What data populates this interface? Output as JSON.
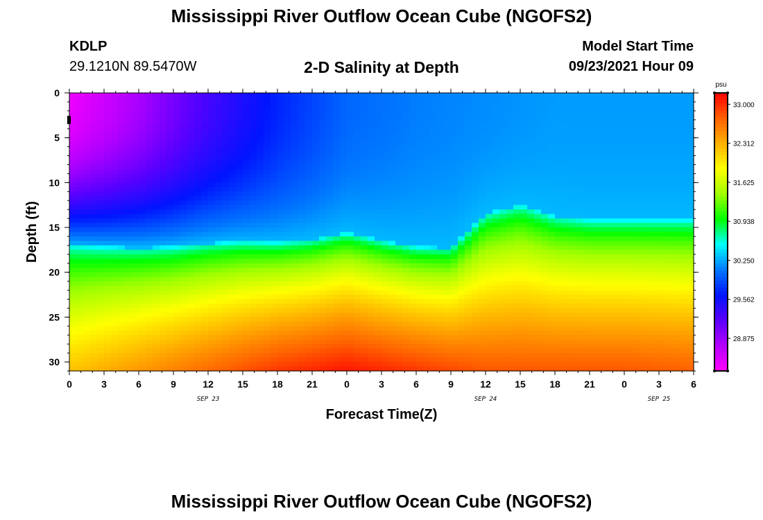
{
  "header": {
    "title": "Mississippi River Outflow Ocean Cube (NGOFS2)",
    "station_id": "KDLP",
    "coords": "29.1210N  89.5470W",
    "subtitle": "2-D Salinity at Depth",
    "model_start_label": "Model Start Time",
    "model_start_value": "09/23/2021 Hour 09"
  },
  "footer": {
    "title": "Mississippi River Outflow Ocean Cube (NGOFS2)"
  },
  "chart_data": {
    "type": "heatmap",
    "title": "2-D Salinity at Depth",
    "xlabel": "Forecast Time(Z)",
    "ylabel": "Depth (ft)",
    "x_tick_labels": [
      "0",
      "3",
      "6",
      "9",
      "12",
      "15",
      "18",
      "21",
      "0",
      "3",
      "6",
      "9",
      "12",
      "15",
      "18",
      "21",
      "0",
      "3",
      "6"
    ],
    "x_hours_range": [
      0,
      54
    ],
    "date_labels": [
      {
        "label": "SEP 23",
        "hour": 12
      },
      {
        "label": "SEP 24",
        "hour": 36
      },
      {
        "label": "SEP 25",
        "hour": 51
      }
    ],
    "y_ticks": [
      0,
      5,
      10,
      15,
      20,
      25,
      30
    ],
    "ylim": [
      0,
      31
    ],
    "y_inverted": true,
    "colorbar": {
      "unit": "psu",
      "ticks": [
        "33.000",
        "32.312",
        "31.625",
        "30.938",
        "30.250",
        "29.562",
        "28.875"
      ],
      "range": [
        28.3,
        33.2
      ],
      "colors": [
        "#ff00ff",
        "#b400ff",
        "#5a00ff",
        "#0014ff",
        "#0078ff",
        "#00ffff",
        "#00ff00",
        "#a0ff00",
        "#ffff00",
        "#ffb000",
        "#ff6000",
        "#ff0000"
      ]
    },
    "halocline_depth": {
      "hours": [
        0,
        3,
        6,
        9,
        12,
        15,
        18,
        21,
        24,
        27,
        30,
        33,
        36,
        39,
        42,
        45,
        48,
        51,
        54
      ],
      "depth_ft": [
        17.0,
        17.2,
        17.3,
        17.2,
        16.8,
        16.6,
        16.7,
        16.4,
        15.6,
        16.5,
        17.2,
        17.3,
        13.5,
        12.5,
        13.8,
        14.2,
        14.2,
        14.2,
        14.2
      ]
    },
    "surface_salinity_psu": {
      "hours": [
        0,
        6,
        12,
        18,
        24,
        30,
        36,
        42,
        48,
        54
      ],
      "values": [
        28.4,
        28.8,
        29.3,
        29.7,
        30.0,
        30.1,
        30.15,
        30.2,
        30.2,
        30.2
      ]
    },
    "bottom_salinity_psu": {
      "hours": [
        0,
        6,
        12,
        18,
        24,
        30,
        36,
        42,
        48,
        54
      ],
      "values": [
        32.2,
        32.45,
        32.7,
        32.95,
        33.1,
        32.95,
        32.8,
        32.8,
        32.8,
        32.75
      ]
    }
  }
}
